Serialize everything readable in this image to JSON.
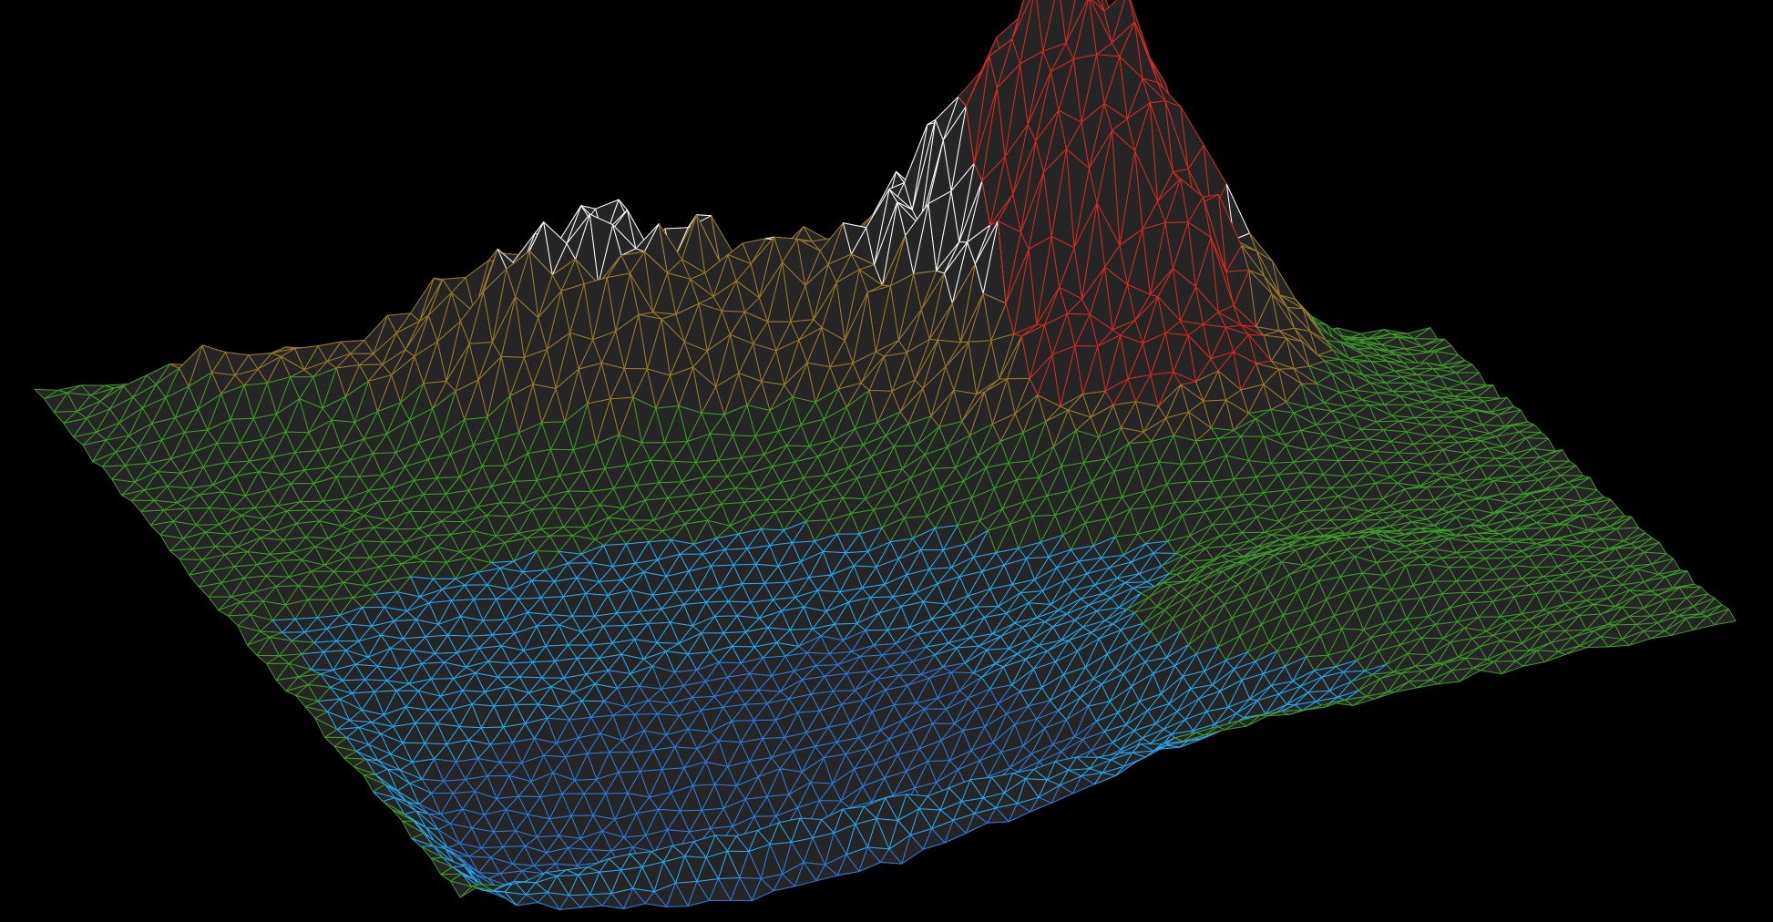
{
  "scene": {
    "kind": "3d-wireframe-terrain",
    "background_color": "#000000",
    "face_color": "#252525",
    "grid_resolution": [
      60,
      44
    ],
    "color_bands": [
      {
        "name": "deep-water",
        "color": "#2f7bd8"
      },
      {
        "name": "shallow-water",
        "color": "#29a8ee"
      },
      {
        "name": "lowland",
        "color": "#3f9a2a"
      },
      {
        "name": "upland",
        "color": "#9a7a2e"
      },
      {
        "name": "snow-peak",
        "color": "#ffffff"
      },
      {
        "name": "ridge-highlight",
        "color": "#d42a22"
      }
    ]
  }
}
